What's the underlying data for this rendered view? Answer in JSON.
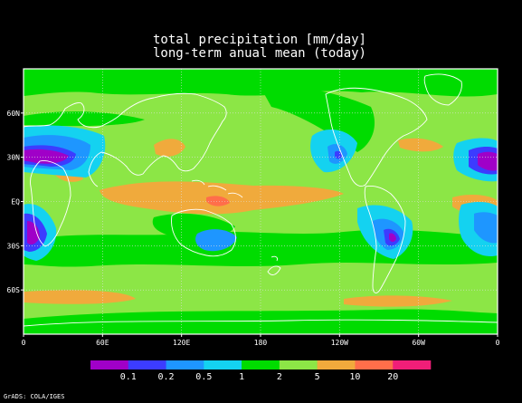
{
  "title_line1": "total precipitation [mm/day]",
  "title_line2": "long-term anual mean (today)",
  "credit": "GrADS: COLA/IGES",
  "map": {
    "lon_ticks": [
      "0",
      "60E",
      "120E",
      "180",
      "120W",
      "60W",
      "0"
    ],
    "lat_ticks": [
      "60N",
      "30N",
      "EQ",
      "30S",
      "60S"
    ],
    "grid": true,
    "projection": "lat-lon, 0 to 360"
  },
  "colorbar": {
    "colors": [
      "#a000c8",
      "#3c3cff",
      "#1e96ff",
      "#14d2f0",
      "#00dc00",
      "#8ce646",
      "#f0aa3c",
      "#ff6e4a",
      "#f01e78"
    ],
    "labels": [
      "0.1",
      "0.2",
      "0.5",
      "1",
      "2",
      "5",
      "10",
      "20"
    ]
  },
  "colors": {
    "background": "#000000",
    "coastline": "#ffffff",
    "grid": "#e0e0e0"
  }
}
